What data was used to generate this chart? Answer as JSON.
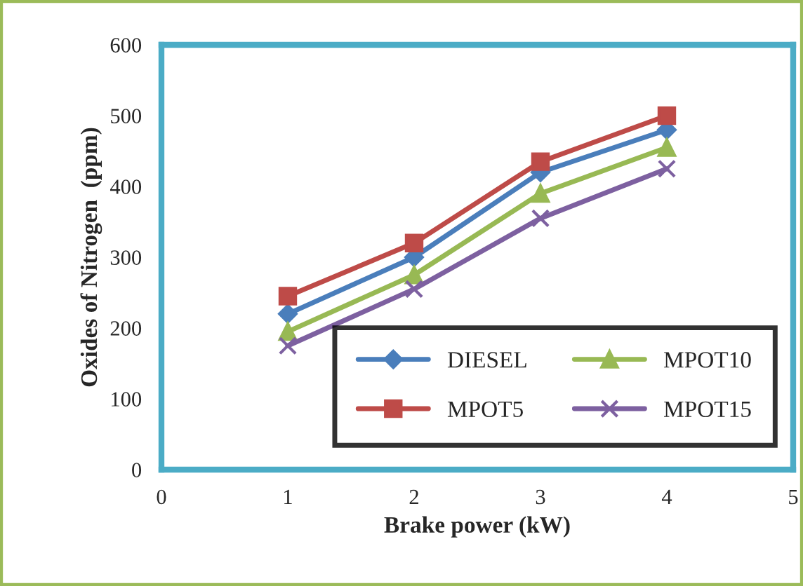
{
  "chart_data": {
    "type": "line",
    "xlabel": "Brake power (kW)",
    "ylabel": "Oxides of Nitrogen  (ppm)",
    "x": [
      1,
      2,
      3,
      4
    ],
    "xlim": [
      0,
      5
    ],
    "xticks": [
      0,
      1,
      2,
      3,
      4,
      5
    ],
    "ylim": [
      0,
      600
    ],
    "yticks": [
      0,
      100,
      200,
      300,
      400,
      500,
      600
    ],
    "grid": false,
    "legend": "bottom right",
    "line_style": "solid",
    "series": [
      {
        "name": "DIESEL",
        "color": "#4a7ebb",
        "marker": "diamond",
        "values": [
          220,
          300,
          420,
          480
        ]
      },
      {
        "name": "MPOT5",
        "color": "#be4b48",
        "marker": "square",
        "values": [
          245,
          320,
          435,
          500
        ]
      },
      {
        "name": "MPOT10",
        "color": "#98b954",
        "marker": "triangle",
        "values": [
          195,
          275,
          390,
          455
        ]
      },
      {
        "name": "MPOT15",
        "color": "#7d60a0",
        "marker": "cross",
        "values": [
          175,
          255,
          355,
          425
        ]
      }
    ]
  }
}
